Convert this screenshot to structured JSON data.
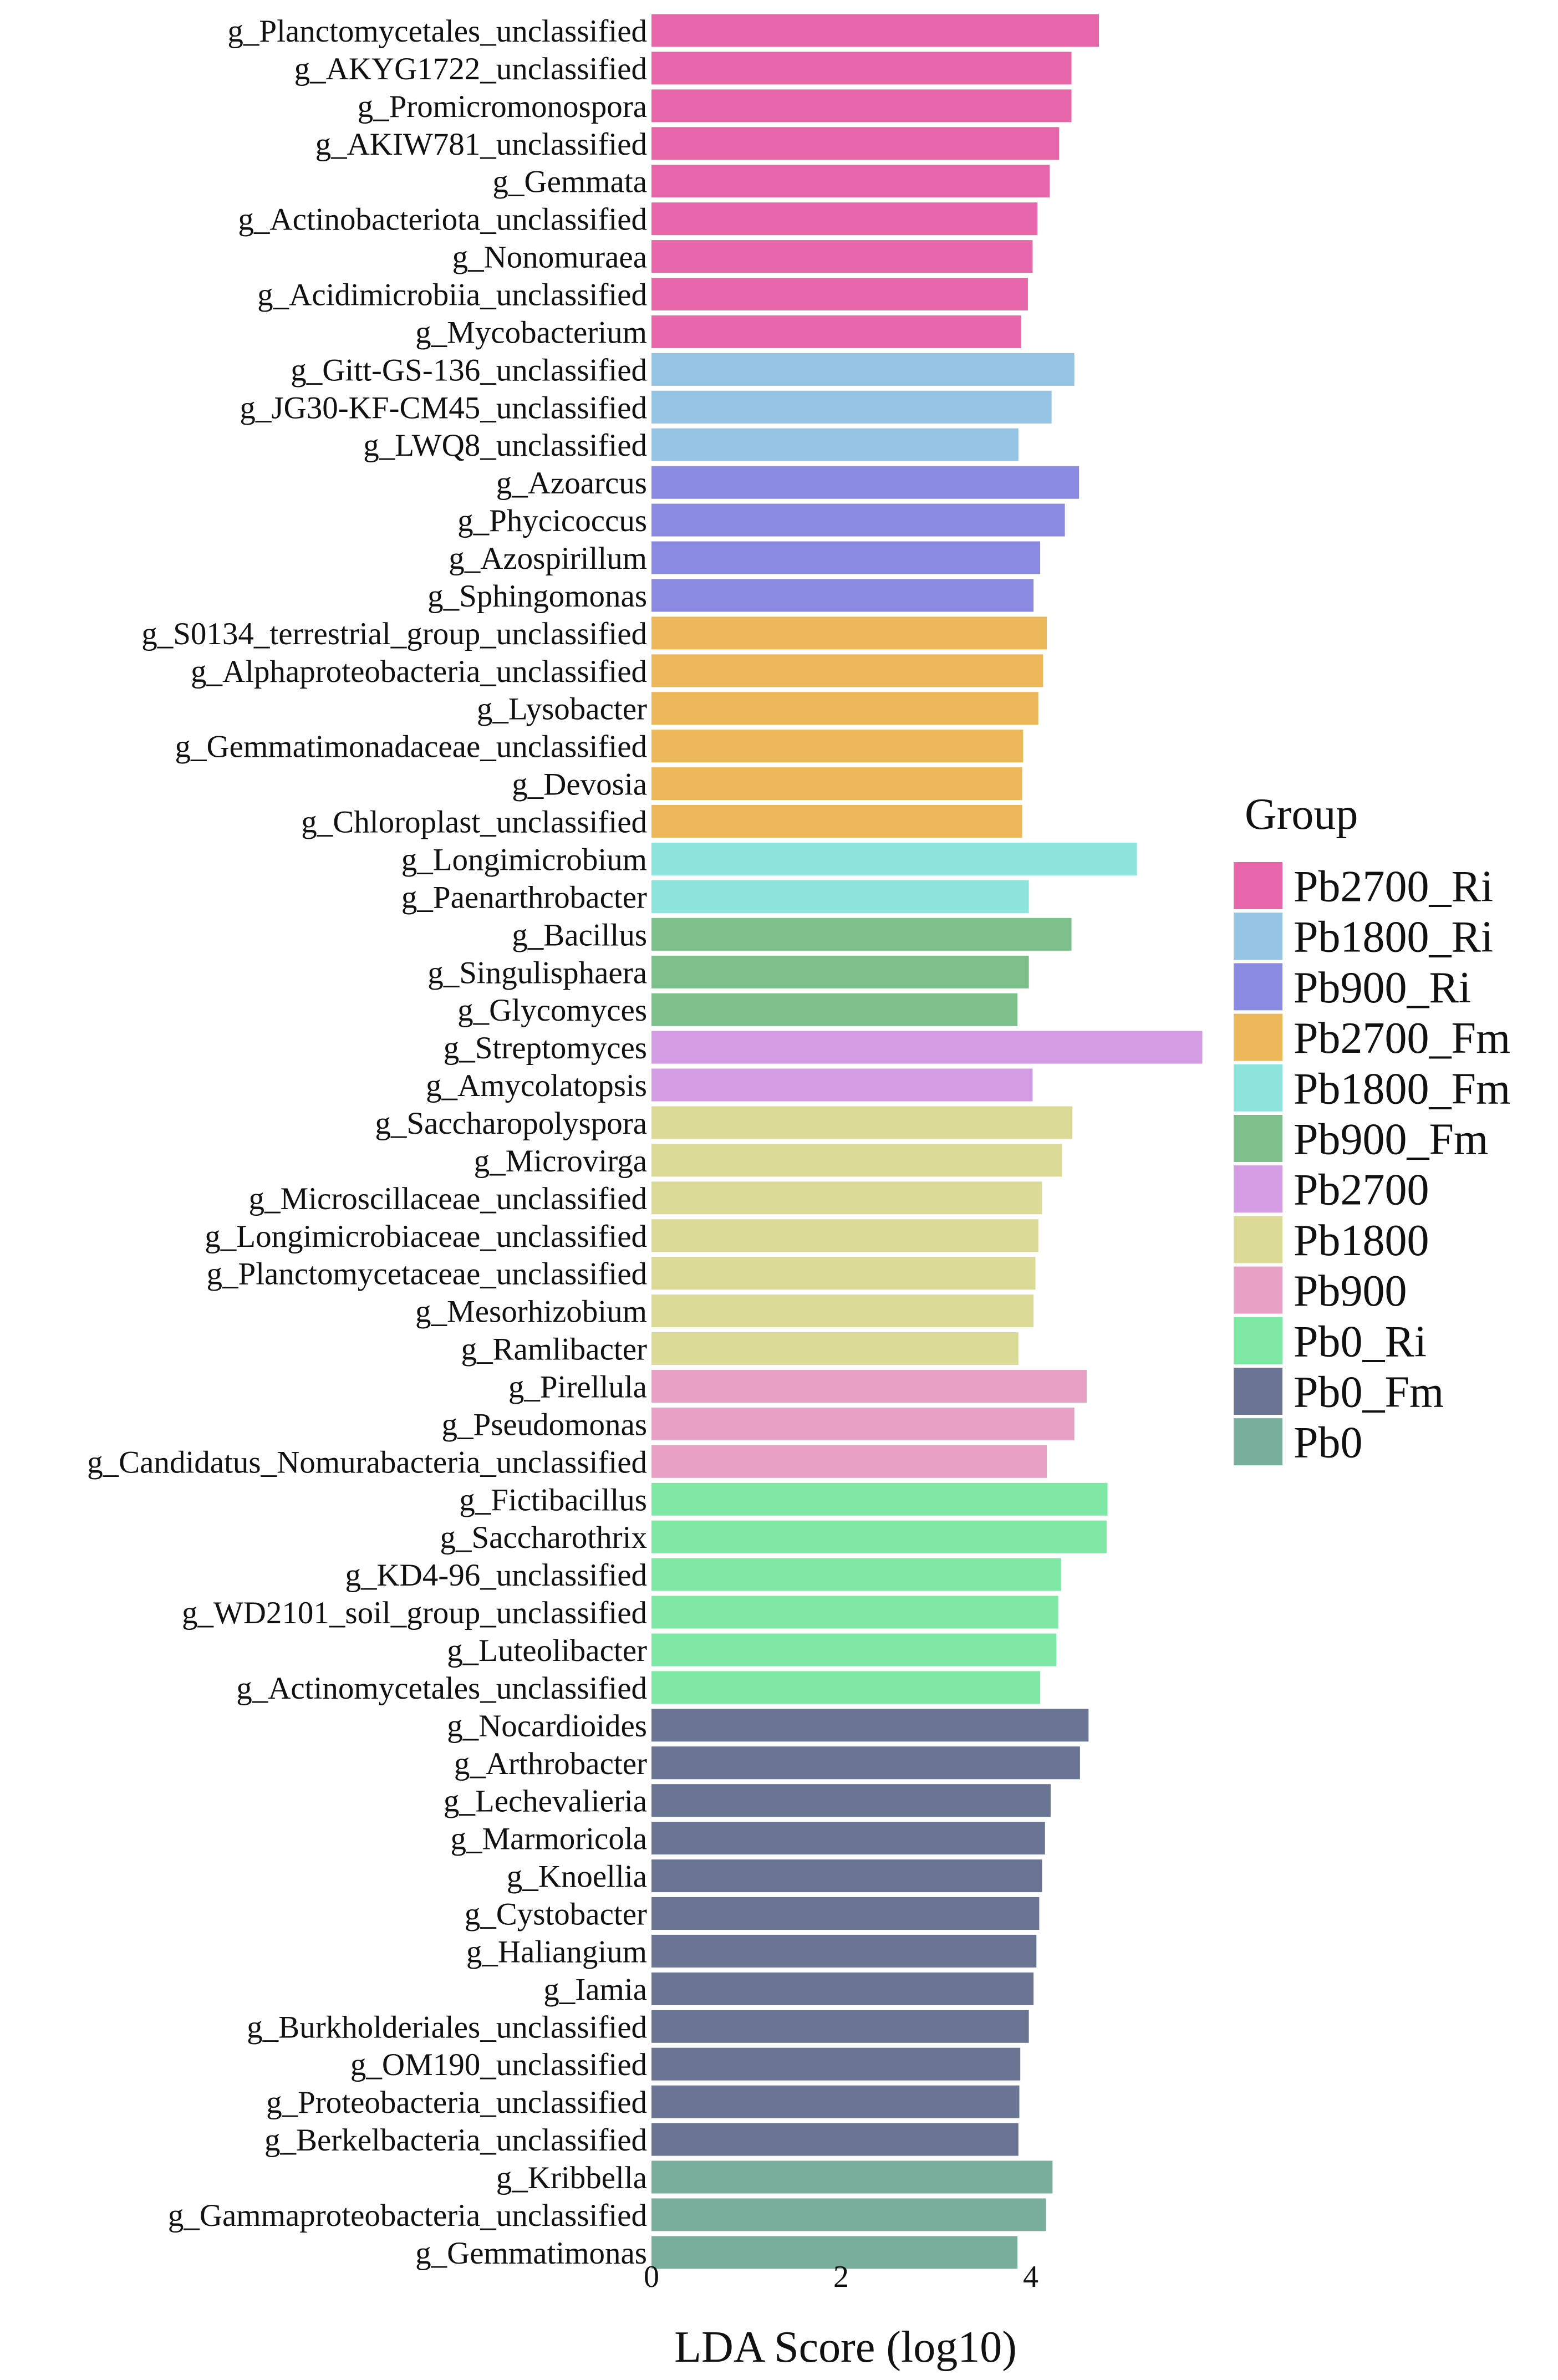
{
  "chart_data": {
    "type": "bar",
    "orientation": "horizontal",
    "title": "",
    "xlabel": "LDA Score (log10)",
    "ylabel": "",
    "xlim": [
      0,
      5.8
    ],
    "xticks": [
      0,
      2,
      4
    ],
    "grid": false,
    "legend_title": "Group",
    "legend_position": "right",
    "groups": [
      {
        "name": "Pb2700_Ri",
        "color": "#E766A9"
      },
      {
        "name": "Pb1800_Ri",
        "color": "#95C3E4"
      },
      {
        "name": "Pb900_Ri",
        "color": "#8B8AE2"
      },
      {
        "name": "Pb2700_Fm",
        "color": "#EBB758"
      },
      {
        "name": "Pb1800_Fm",
        "color": "#8DE4DC"
      },
      {
        "name": "Pb900_Fm",
        "color": "#7CBF8B"
      },
      {
        "name": "Pb2700",
        "color": "#D39BE2"
      },
      {
        "name": "Pb1800",
        "color": "#DBDA97"
      },
      {
        "name": "Pb900",
        "color": "#E79FC3"
      },
      {
        "name": "Pb0_Ri",
        "color": "#7DE9A5"
      },
      {
        "name": "Pb0_Fm",
        "color": "#6A7594"
      },
      {
        "name": "Pb0",
        "color": "#78AE9B"
      }
    ],
    "bars": [
      {
        "label": "g_Planctomycetales_unclassified",
        "value": 4.72,
        "group": "Pb2700_Ri"
      },
      {
        "label": "g_AKYG1722_unclassified",
        "value": 4.43,
        "group": "Pb2700_Ri"
      },
      {
        "label": "g_Promicromonospora",
        "value": 4.43,
        "group": "Pb2700_Ri"
      },
      {
        "label": "g_AKIW781_unclassified",
        "value": 4.3,
        "group": "Pb2700_Ri"
      },
      {
        "label": "g_Gemmata",
        "value": 4.2,
        "group": "Pb2700_Ri"
      },
      {
        "label": "g_Actinobacteriota_unclassified",
        "value": 4.07,
        "group": "Pb2700_Ri"
      },
      {
        "label": "g_Nonomuraea",
        "value": 4.02,
        "group": "Pb2700_Ri"
      },
      {
        "label": "g_Acidimicrobiia_unclassified",
        "value": 3.97,
        "group": "Pb2700_Ri"
      },
      {
        "label": "g_Mycobacterium",
        "value": 3.9,
        "group": "Pb2700_Ri"
      },
      {
        "label": "g_Gitt-GS-136_unclassified",
        "value": 4.46,
        "group": "Pb1800_Ri"
      },
      {
        "label": "g_JG30-KF-CM45_unclassified",
        "value": 4.22,
        "group": "Pb1800_Ri"
      },
      {
        "label": "g_LWQ8_unclassified",
        "value": 3.87,
        "group": "Pb1800_Ri"
      },
      {
        "label": "g_Azoarcus",
        "value": 4.51,
        "group": "Pb900_Ri"
      },
      {
        "label": "g_Phycicoccus",
        "value": 4.36,
        "group": "Pb900_Ri"
      },
      {
        "label": "g_Azospirillum",
        "value": 4.1,
        "group": "Pb900_Ri"
      },
      {
        "label": "g_Sphingomonas",
        "value": 4.03,
        "group": "Pb900_Ri"
      },
      {
        "label": "g_S0134_terrestrial_group_unclassified",
        "value": 4.17,
        "group": "Pb2700_Fm"
      },
      {
        "label": "g_Alphaproteobacteria_unclassified",
        "value": 4.13,
        "group": "Pb2700_Fm"
      },
      {
        "label": "g_Lysobacter",
        "value": 4.08,
        "group": "Pb2700_Fm"
      },
      {
        "label": "g_Gemmatimonadaceae_unclassified",
        "value": 3.92,
        "group": "Pb2700_Fm"
      },
      {
        "label": "g_Devosia",
        "value": 3.91,
        "group": "Pb2700_Fm"
      },
      {
        "label": "g_Chloroplast_unclassified",
        "value": 3.91,
        "group": "Pb2700_Fm"
      },
      {
        "label": "g_Longimicrobium",
        "value": 5.12,
        "group": "Pb1800_Fm"
      },
      {
        "label": "g_Paenarthrobacter",
        "value": 3.98,
        "group": "Pb1800_Fm"
      },
      {
        "label": "g_Bacillus",
        "value": 4.43,
        "group": "Pb900_Fm"
      },
      {
        "label": "g_Singulisphaera",
        "value": 3.98,
        "group": "Pb900_Fm"
      },
      {
        "label": "g_Glycomyces",
        "value": 3.86,
        "group": "Pb900_Fm"
      },
      {
        "label": "g_Streptomyces",
        "value": 5.81,
        "group": "Pb2700"
      },
      {
        "label": "g_Amycolatopsis",
        "value": 4.02,
        "group": "Pb2700"
      },
      {
        "label": "g_Saccharopolyspora",
        "value": 4.44,
        "group": "Pb1800"
      },
      {
        "label": "g_Microvirga",
        "value": 4.33,
        "group": "Pb1800"
      },
      {
        "label": "g_Microscillaceae_unclassified",
        "value": 4.12,
        "group": "Pb1800"
      },
      {
        "label": "g_Longimicrobiaceae_unclassified",
        "value": 4.08,
        "group": "Pb1800"
      },
      {
        "label": "g_Planctomycetaceae_unclassified",
        "value": 4.05,
        "group": "Pb1800"
      },
      {
        "label": "g_Mesorhizobium",
        "value": 4.03,
        "group": "Pb1800"
      },
      {
        "label": "g_Ramlibacter",
        "value": 3.87,
        "group": "Pb1800"
      },
      {
        "label": "g_Pirellula",
        "value": 4.59,
        "group": "Pb900"
      },
      {
        "label": "g_Pseudomonas",
        "value": 4.46,
        "group": "Pb900"
      },
      {
        "label": "g_Candidatus_Nomurabacteria_unclassified",
        "value": 4.17,
        "group": "Pb900"
      },
      {
        "label": "g_Fictibacillus",
        "value": 4.81,
        "group": "Pb0_Ri"
      },
      {
        "label": "g_Saccharothrix",
        "value": 4.8,
        "group": "Pb0_Ri"
      },
      {
        "label": "g_KD4-96_unclassified",
        "value": 4.32,
        "group": "Pb0_Ri"
      },
      {
        "label": "g_WD2101_soil_group_unclassified",
        "value": 4.29,
        "group": "Pb0_Ri"
      },
      {
        "label": "g_Luteolibacter",
        "value": 4.27,
        "group": "Pb0_Ri"
      },
      {
        "label": "g_Actinomycetales_unclassified",
        "value": 4.1,
        "group": "Pb0_Ri"
      },
      {
        "label": "g_Nocardioides",
        "value": 4.61,
        "group": "Pb0_Fm"
      },
      {
        "label": "g_Arthrobacter",
        "value": 4.52,
        "group": "Pb0_Fm"
      },
      {
        "label": "g_Lechevalieria",
        "value": 4.21,
        "group": "Pb0_Fm"
      },
      {
        "label": "g_Marmoricola",
        "value": 4.15,
        "group": "Pb0_Fm"
      },
      {
        "label": "g_Knoellia",
        "value": 4.12,
        "group": "Pb0_Fm"
      },
      {
        "label": "g_Cystobacter",
        "value": 4.09,
        "group": "Pb0_Fm"
      },
      {
        "label": "g_Haliangium",
        "value": 4.06,
        "group": "Pb0_Fm"
      },
      {
        "label": "g_Iamia",
        "value": 4.03,
        "group": "Pb0_Fm"
      },
      {
        "label": "g_Burkholderiales_unclassified",
        "value": 3.98,
        "group": "Pb0_Fm"
      },
      {
        "label": "g_OM190_unclassified",
        "value": 3.89,
        "group": "Pb0_Fm"
      },
      {
        "label": "g_Proteobacteria_unclassified",
        "value": 3.88,
        "group": "Pb0_Fm"
      },
      {
        "label": "g_Berkelbacteria_unclassified",
        "value": 3.87,
        "group": "Pb0_Fm"
      },
      {
        "label": "g_Kribbella",
        "value": 4.23,
        "group": "Pb0"
      },
      {
        "label": "g_Gammaproteobacteria_unclassified",
        "value": 4.16,
        "group": "Pb0"
      },
      {
        "label": "g_Gemmatimonas",
        "value": 3.86,
        "group": "Pb0"
      }
    ]
  }
}
